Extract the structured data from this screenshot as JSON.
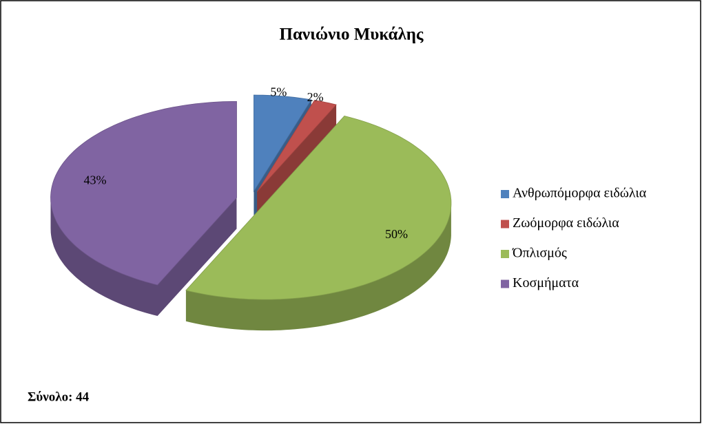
{
  "chart_data": {
    "type": "pie",
    "title": "Πανιώνιο Μυκάλης",
    "categories": [
      "Ανθρωπόμορφα ειδώλια",
      "Ζωόμορφα ειδώλια",
      "Όπλισμός",
      "Κοσμήματα"
    ],
    "values": [
      5,
      2,
      50,
      43
    ],
    "value_labels": [
      "5%",
      "2%",
      "50%",
      "43%"
    ],
    "colors": [
      "#4f81bd",
      "#c0504d",
      "#9bbb59",
      "#8064a2"
    ],
    "legend": "right",
    "annotation": "Σύνολο: 44"
  }
}
